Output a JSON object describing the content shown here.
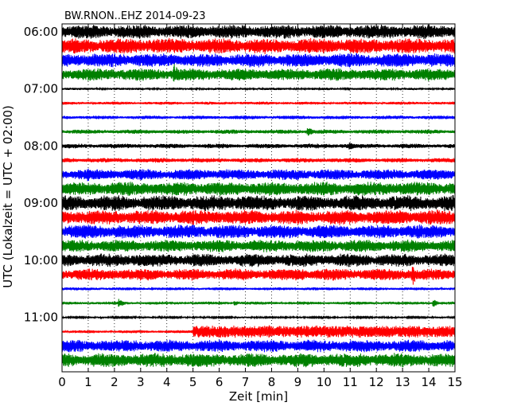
{
  "chart_data": {
    "type": "line",
    "title": "BW.RNON..EHZ 2014-09-23",
    "xlabel": "Zeit  [min]",
    "ylabel": "UTC (Lokalzeit = UTC + 02:00)",
    "xlim": [
      0,
      15
    ],
    "x_ticks": [
      "0",
      "1",
      "2",
      "3",
      "4",
      "5",
      "6",
      "7",
      "8",
      "9",
      "10",
      "11",
      "12",
      "13",
      "14",
      "15"
    ],
    "y_ticks": [
      "06:00",
      "07:00",
      "08:00",
      "09:00",
      "10:00",
      "11:00"
    ],
    "grid": "vertical-dotted",
    "trace_interval_min": 15,
    "colors": [
      "#000000",
      "#ff0000",
      "#0000ff",
      "#008000"
    ],
    "traces": [
      {
        "start": "06:00",
        "color": "#000000",
        "amplitude": 0.45,
        "events": []
      },
      {
        "start": "06:15",
        "color": "#ff0000",
        "amplitude": 0.5,
        "events": []
      },
      {
        "start": "06:30",
        "color": "#0000ff",
        "amplitude": 0.45,
        "events": []
      },
      {
        "start": "06:45",
        "color": "#008000",
        "amplitude": 0.4,
        "events": [
          {
            "t": 4.3,
            "amp": 0.75
          }
        ]
      },
      {
        "start": "07:00",
        "color": "#000000",
        "amplitude": 0.08,
        "events": []
      },
      {
        "start": "07:15",
        "color": "#ff0000",
        "amplitude": 0.1,
        "events": []
      },
      {
        "start": "07:30",
        "color": "#0000ff",
        "amplitude": 0.12,
        "events": []
      },
      {
        "start": "07:45",
        "color": "#008000",
        "amplitude": 0.14,
        "events": [
          {
            "t": 9.4,
            "amp": 0.35
          }
        ]
      },
      {
        "start": "08:00",
        "color": "#000000",
        "amplitude": 0.15,
        "events": [
          {
            "t": 11.0,
            "amp": 0.3
          }
        ]
      },
      {
        "start": "08:15",
        "color": "#ff0000",
        "amplitude": 0.15,
        "events": []
      },
      {
        "start": "08:30",
        "color": "#0000ff",
        "amplitude": 0.35,
        "events": [
          {
            "t": 1.0,
            "amp": 0.5
          }
        ]
      },
      {
        "start": "08:45",
        "color": "#008000",
        "amplitude": 0.45,
        "events": []
      },
      {
        "start": "09:00",
        "color": "#000000",
        "amplitude": 0.5,
        "events": []
      },
      {
        "start": "09:15",
        "color": "#ff0000",
        "amplitude": 0.48,
        "events": []
      },
      {
        "start": "09:30",
        "color": "#0000ff",
        "amplitude": 0.45,
        "events": []
      },
      {
        "start": "09:45",
        "color": "#008000",
        "amplitude": 0.4,
        "events": []
      },
      {
        "start": "10:00",
        "color": "#000000",
        "amplitude": 0.42,
        "events": []
      },
      {
        "start": "10:15",
        "color": "#ff0000",
        "amplitude": 0.38,
        "events": [
          {
            "t": 13.4,
            "amp": 0.75
          },
          {
            "t": 9.2,
            "amp": 0.4
          }
        ]
      },
      {
        "start": "10:30",
        "color": "#0000ff",
        "amplitude": 0.1,
        "events": []
      },
      {
        "start": "10:45",
        "color": "#008000",
        "amplitude": 0.1,
        "events": [
          {
            "t": 2.2,
            "amp": 0.3
          },
          {
            "t": 6.6,
            "amp": 0.2
          },
          {
            "t": 14.2,
            "amp": 0.25
          }
        ]
      },
      {
        "start": "11:00",
        "color": "#000000",
        "amplitude": 0.06,
        "events": []
      },
      {
        "start": "11:15",
        "color": "#ff0000",
        "amplitude": 0.1,
        "events": [],
        "step": {
          "t": 5.0,
          "amp": 0.45
        }
      },
      {
        "start": "11:30",
        "color": "#0000ff",
        "amplitude": 0.4,
        "events": []
      },
      {
        "start": "11:45",
        "color": "#008000",
        "amplitude": 0.45,
        "events": []
      }
    ]
  }
}
